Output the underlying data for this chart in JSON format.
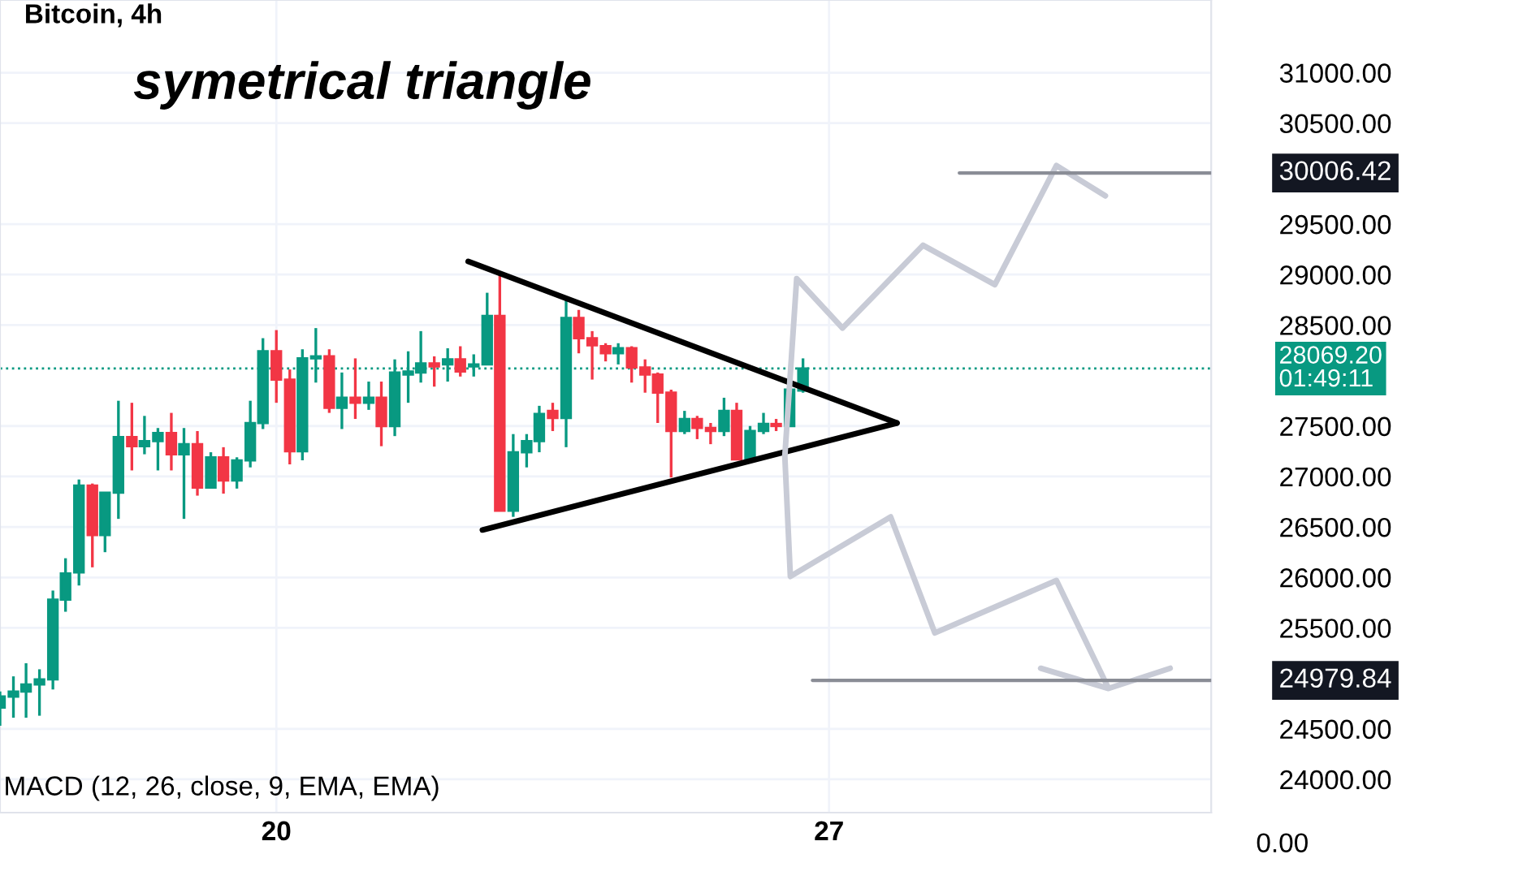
{
  "chart_data": {
    "type": "candlestick",
    "title": "Bitcoin, 4h",
    "x": [
      16.5,
      16.67,
      16.83,
      17.0,
      17.17,
      17.33,
      17.5,
      17.67,
      17.83,
      18.0,
      18.17,
      18.33,
      18.5,
      18.67,
      18.83,
      19.0,
      19.17,
      19.33,
      19.5,
      19.67,
      19.83,
      20.0,
      20.17,
      20.33,
      20.5,
      20.67,
      20.83,
      21.0,
      21.17,
      21.33,
      21.5,
      21.67,
      21.83,
      22.0,
      22.17,
      22.33,
      22.5,
      22.67,
      22.83,
      23.0,
      23.17,
      23.33,
      23.5,
      23.67,
      23.83,
      24.0,
      24.17,
      24.33,
      24.5,
      24.67,
      24.83,
      25.0,
      25.17,
      25.33,
      25.5,
      25.67,
      25.83,
      26.0,
      26.17,
      26.33,
      26.5,
      26.67
    ],
    "ohlc": [
      [
        24710,
        24870,
        24530,
        24820
      ],
      [
        24820,
        25020,
        24610,
        24870
      ],
      [
        24870,
        25150,
        24610,
        24940
      ],
      [
        24940,
        25090,
        24630,
        24990
      ],
      [
        24990,
        25870,
        24890,
        25780
      ],
      [
        25780,
        26190,
        25660,
        26040
      ],
      [
        26050,
        26970,
        25920,
        26910
      ],
      [
        26910,
        26930,
        26100,
        26420
      ],
      [
        26420,
        26840,
        26250,
        26840
      ],
      [
        26840,
        27750,
        26580,
        27390
      ],
      [
        27390,
        27730,
        27060,
        27300
      ],
      [
        27300,
        27600,
        27220,
        27350
      ],
      [
        27350,
        27480,
        27060,
        27430
      ],
      [
        27430,
        27630,
        27060,
        27220
      ],
      [
        27220,
        27480,
        26580,
        27320
      ],
      [
        27320,
        27450,
        26810,
        26890
      ],
      [
        26890,
        27240,
        26890,
        27190
      ],
      [
        27190,
        27290,
        26830,
        26960
      ],
      [
        26960,
        27190,
        26880,
        27160
      ],
      [
        27160,
        27750,
        27090,
        27530
      ],
      [
        27530,
        28370,
        27470,
        28240
      ],
      [
        28240,
        28450,
        27730,
        27960
      ],
      [
        27960,
        28060,
        27120,
        27250
      ],
      [
        27250,
        28260,
        27160,
        28170
      ],
      [
        28170,
        28470,
        27930,
        28190
      ],
      [
        28190,
        28260,
        27630,
        27680
      ],
      [
        27680,
        28030,
        27470,
        27780
      ],
      [
        27780,
        28170,
        27570,
        27730
      ],
      [
        27730,
        27940,
        27660,
        27780
      ],
      [
        27780,
        27940,
        27300,
        27500
      ],
      [
        27500,
        28160,
        27400,
        28030
      ],
      [
        28010,
        28240,
        27730,
        28040
      ],
      [
        28030,
        28440,
        27930,
        28120
      ],
      [
        28120,
        28190,
        27890,
        28090
      ],
      [
        28110,
        28270,
        27940,
        28160
      ],
      [
        28160,
        28290,
        27990,
        28040
      ],
      [
        28090,
        28210,
        27990,
        28110
      ],
      [
        28110,
        28820,
        28110,
        28590
      ],
      [
        28590,
        29000,
        26660,
        26660
      ],
      [
        26660,
        27420,
        26600,
        27240
      ],
      [
        27240,
        27420,
        27090,
        27350
      ],
      [
        27350,
        27700,
        27240,
        27620
      ],
      [
        27650,
        27730,
        27450,
        27580
      ],
      [
        27580,
        28750,
        27290,
        28570
      ],
      [
        28570,
        28650,
        28220,
        28370
      ],
      [
        28370,
        28440,
        27960,
        28300
      ],
      [
        28290,
        28320,
        28140,
        28220
      ],
      [
        28220,
        28320,
        28110,
        28270
      ],
      [
        28270,
        28290,
        27930,
        28080
      ],
      [
        28080,
        28160,
        27830,
        28010
      ],
      [
        28010,
        28030,
        27530,
        27830
      ],
      [
        27830,
        27860,
        26990,
        27450
      ],
      [
        27450,
        27650,
        27420,
        27570
      ],
      [
        27570,
        27600,
        27370,
        27480
      ],
      [
        27480,
        27530,
        27320,
        27450
      ],
      [
        27450,
        27780,
        27400,
        27650
      ],
      [
        27650,
        27730,
        27170,
        27170
      ],
      [
        27170,
        27500,
        27160,
        27450
      ],
      [
        27450,
        27630,
        27420,
        27520
      ],
      [
        27520,
        27570,
        27450,
        27500
      ],
      [
        27500,
        27890,
        27500,
        27860
      ],
      [
        27850,
        28170,
        27830,
        28070
      ]
    ],
    "colors": [
      "#089981",
      "#089981",
      "#089981",
      "#089981",
      "#089981",
      "#089981",
      "#089981",
      "#f23645",
      "#089981",
      "#089981",
      "#f23645",
      "#089981",
      "#089981",
      "#f23645",
      "#089981",
      "#f23645",
      "#089981",
      "#f23645",
      "#089981",
      "#089981",
      "#089981",
      "#f23645",
      "#f23645",
      "#089981",
      "#089981",
      "#f23645",
      "#089981",
      "#f23645",
      "#089981",
      "#f23645",
      "#089981",
      "#089981",
      "#089981",
      "#f23645",
      "#089981",
      "#f23645",
      "#089981",
      "#089981",
      "#f23645",
      "#089981",
      "#089981",
      "#089981",
      "#f23645",
      "#089981",
      "#f23645",
      "#f23645",
      "#f23645",
      "#089981",
      "#f23645",
      "#f23645",
      "#f23645",
      "#f23645",
      "#089981",
      "#f23645",
      "#f23645",
      "#089981",
      "#f23645",
      "#089981",
      "#089981",
      "#f23645",
      "#089981",
      "#089981"
    ],
    "series": [
      {
        "type": "line",
        "color": "#000000",
        "x": [
          22.43,
          27.86
        ],
        "values": [
          29130,
          27530
        ]
      },
      {
        "type": "line",
        "color": "#000000",
        "x": [
          22.61,
          27.86
        ],
        "values": [
          26470,
          27530
        ]
      },
      {
        "type": "line",
        "color": "#c8cbd6",
        "x": [
          29.68,
          30.54,
          31.32,
          30.54,
          29.88,
          28.34,
          27.78,
          26.51,
          26.44,
          26.59,
          27.17,
          28.19,
          29.1,
          29.88,
          30.5
        ],
        "values": [
          25100,
          24900,
          25100,
          24900,
          25970,
          25450,
          26600,
          26010,
          27200,
          28960,
          28470,
          29290,
          28900,
          30080,
          29780
        ]
      },
      {
        "type": "line",
        "color": "#8a8d96",
        "x": [
          28.65,
          31.84
        ],
        "values": [
          30006.42,
          30006.42
        ]
      },
      {
        "type": "line",
        "color": "#8a8d96",
        "x": [
          26.79,
          31.84
        ],
        "values": [
          24979.84,
          24979.84
        ]
      }
    ],
    "ref_lines": [
      {
        "axis": "y",
        "value": 28069.2,
        "label": "28069.20\n01:49:11",
        "color": "#089981",
        "line_style": "dotted"
      }
    ],
    "annotations": [
      "symetrical triangle",
      "MACD (12, 26, close, 9, EMA, EMA)",
      "0.00",
      {
        "text": "30006.42",
        "x": 31.84,
        "y": 30006.42
      },
      {
        "text": "24979.84",
        "x": 31.84,
        "y": 24979.84
      }
    ],
    "xlim": [
      16.5,
      31.84
    ],
    "ylim": [
      23670,
      31720
    ],
    "xticks": [
      20,
      27
    ],
    "yticks": [
      {
        "value": 24000,
        "label": "24000.00"
      },
      {
        "value": 24500,
        "label": "24500.00"
      },
      {
        "value": 25500,
        "label": "25500.00"
      },
      {
        "value": 26000,
        "label": "26000.00"
      },
      {
        "value": 26500,
        "label": "26500.00"
      },
      {
        "value": 27000,
        "label": "27000.00"
      },
      {
        "value": 27500,
        "label": "27500.00"
      },
      {
        "value": 28500,
        "label": "28500.00"
      },
      {
        "value": 29000,
        "label": "29000.00"
      },
      {
        "value": 29500,
        "label": "29500.00"
      },
      {
        "value": 30500,
        "label": "30500.00"
      },
      {
        "value": 31000,
        "label": "31000.00"
      }
    ],
    "grid": true
  }
}
